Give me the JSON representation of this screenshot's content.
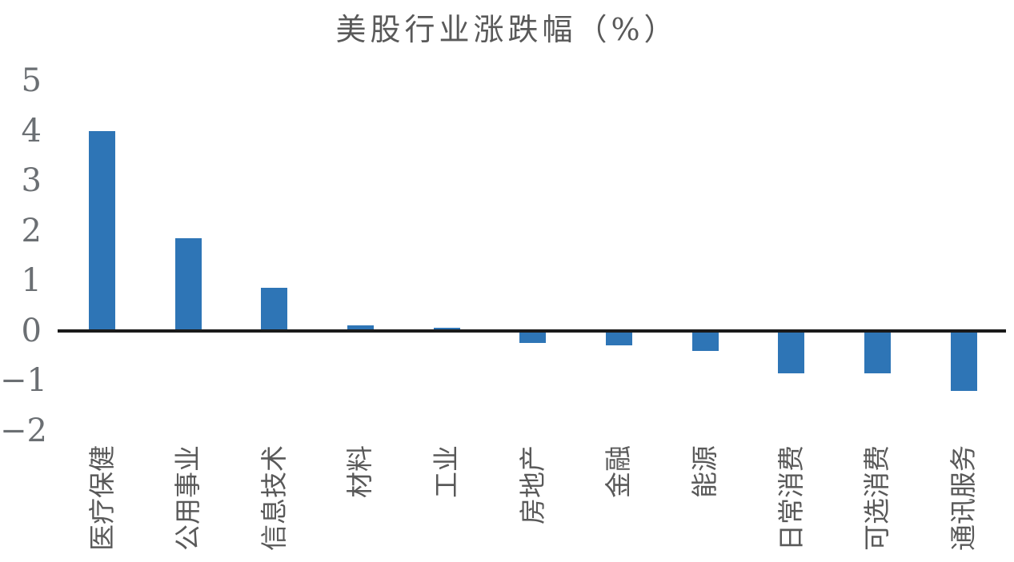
{
  "page": {
    "background": "#ffffff"
  },
  "chart_data": {
    "type": "bar",
    "title": "美股行业涨跌幅（%）",
    "categories": [
      "医疗保健",
      "公用事业",
      "信息技术",
      "材料",
      "工业",
      "房地产",
      "金融",
      "能源",
      "日常消费",
      "可选消费",
      "通讯服务"
    ],
    "values": [
      4.0,
      1.85,
      0.85,
      0.1,
      0.05,
      -0.25,
      -0.3,
      -0.4,
      -0.85,
      -0.85,
      -1.2
    ],
    "xlabel": "",
    "ylabel": "",
    "y_ticks": [
      5,
      4,
      3,
      2,
      1,
      0,
      -1,
      -2
    ],
    "ylim": [
      -2.6,
      5.4
    ],
    "grid": false,
    "legend": null,
    "x_tick_rotation_deg": 90,
    "colors": {
      "bar": "#2e75b6",
      "axis_line": "#1a1a1a",
      "title_text": "#595959",
      "tick_text": "#6b6f73",
      "x_label_text": "#595959"
    }
  }
}
